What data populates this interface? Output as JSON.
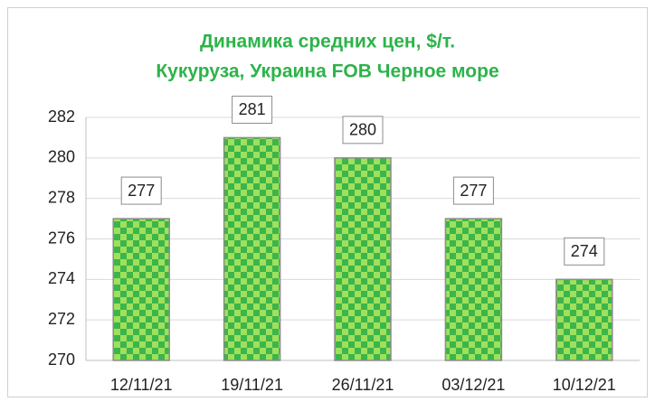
{
  "chart_data": {
    "type": "bar",
    "title": [
      "Динамика средних цен, $/т.",
      "Кукуруза, Украина FOB Черное море"
    ],
    "categories": [
      "12/11/21",
      "19/11/21",
      "26/11/21",
      "03/12/21",
      "10/12/21"
    ],
    "values": [
      277,
      281,
      280,
      277,
      274
    ],
    "color": [
      "#3cb54a",
      "#9fe05c"
    ],
    "ylim": [
      270,
      282
    ],
    "yticks": [
      270,
      272,
      274,
      276,
      278,
      280,
      282
    ],
    "grid": true
  }
}
